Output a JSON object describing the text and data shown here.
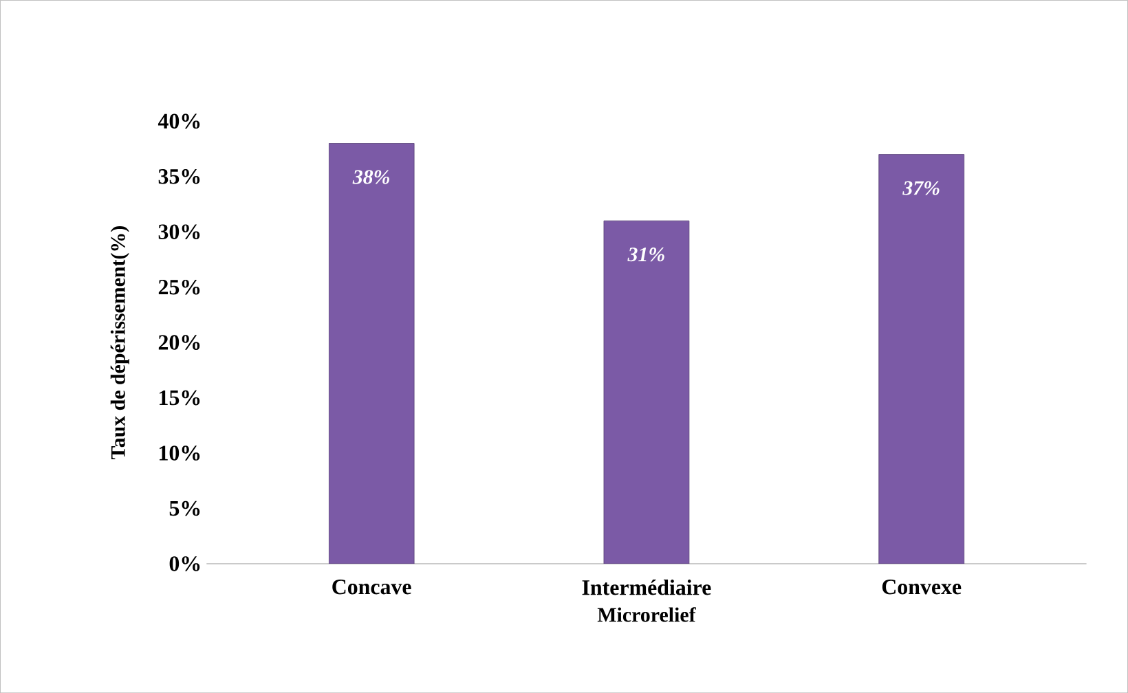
{
  "chart_data": {
    "type": "bar",
    "xlabel": "Microrelief",
    "ylabel": "Taux de dépérissement(%)",
    "categories": [
      "Concave",
      "Intermédiaire",
      "Convexe"
    ],
    "values": [
      38,
      31,
      37
    ],
    "value_labels": [
      "38%",
      "31%",
      "37%"
    ],
    "color": "#7b5aa6",
    "ylim": [
      0,
      40
    ],
    "yticks": [
      {
        "value": 0,
        "label": "0%"
      },
      {
        "value": 5,
        "label": "5%"
      },
      {
        "value": 10,
        "label": "10%"
      },
      {
        "value": 15,
        "label": "15%"
      },
      {
        "value": 20,
        "label": "20%"
      },
      {
        "value": 25,
        "label": "25%"
      },
      {
        "value": 30,
        "label": "30%"
      },
      {
        "value": 35,
        "label": "35%"
      },
      {
        "value": 40,
        "label": "40%"
      }
    ],
    "grid": false
  }
}
